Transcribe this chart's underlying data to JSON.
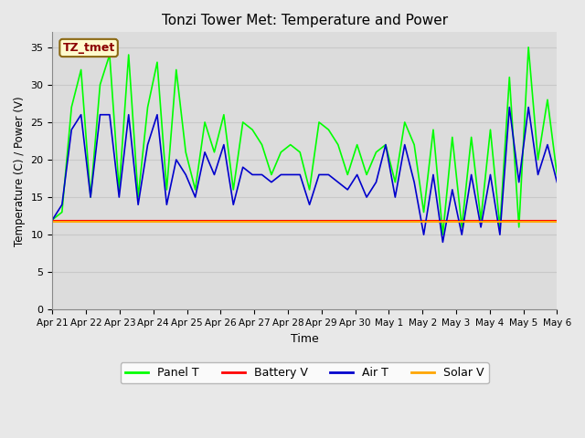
{
  "title": "Tonzi Tower Met: Temperature and Power",
  "xlabel": "Time",
  "ylabel": "Temperature (C) / Power (V)",
  "ylim": [
    0,
    37
  ],
  "yticks": [
    0,
    5,
    10,
    15,
    20,
    25,
    30,
    35
  ],
  "fig_bg_color": "#e8e8e8",
  "plot_bg_color": "#dcdcdc",
  "annotation_text": "TZ_tmet",
  "annotation_bg": "#fffacd",
  "annotation_border": "#8B6914",
  "annotation_text_color": "#8B0000",
  "line_colors": {
    "panel_t": "#00ff00",
    "battery_v": "#ff0000",
    "air_t": "#0000cc",
    "solar_v": "#ffa500"
  },
  "legend_labels": [
    "Panel T",
    "Battery V",
    "Air T",
    "Solar V"
  ],
  "xtick_labels": [
    "Apr 21",
    "Apr 22",
    "Apr 23",
    "Apr 24",
    "Apr 25",
    "Apr 26",
    "Apr 27",
    "Apr 28",
    "Apr 29",
    "Apr 30",
    "May 1",
    "May 2",
    "May 3",
    "May 4",
    "May 5",
    "May 6"
  ],
  "grid_color": "#c8c8c8",
  "panel_t_data": [
    12,
    13,
    27,
    32,
    15,
    30,
    34,
    16,
    34,
    15,
    27,
    33,
    16,
    32,
    21,
    16,
    25,
    21,
    26,
    16,
    25,
    24,
    22,
    18,
    21,
    22,
    21,
    16,
    25,
    24,
    22,
    18,
    22,
    18,
    21,
    22,
    17,
    25,
    22,
    13,
    24,
    10,
    23,
    11,
    23,
    12,
    24,
    11,
    31,
    11,
    35,
    20,
    28,
    18
  ],
  "air_t_data": [
    12,
    14,
    24,
    26,
    15,
    26,
    26,
    15,
    26,
    14,
    22,
    26,
    14,
    20,
    18,
    15,
    21,
    18,
    22,
    14,
    19,
    18,
    18,
    17,
    18,
    18,
    18,
    14,
    18,
    18,
    17,
    16,
    18,
    15,
    17,
    22,
    15,
    22,
    17,
    10,
    18,
    9,
    16,
    10,
    18,
    11,
    18,
    10,
    27,
    17,
    27,
    18,
    22,
    17
  ],
  "battery_v_data": [
    11.9,
    11.9,
    11.9,
    11.9,
    11.9,
    11.9,
    11.9,
    11.9,
    11.9,
    11.9,
    11.9,
    11.9,
    11.9,
    11.9,
    11.9,
    11.9,
    11.9,
    11.9,
    11.9,
    11.9,
    11.9,
    11.9,
    11.9,
    11.9,
    11.9,
    11.9,
    11.9,
    11.9,
    11.9,
    11.9,
    11.9,
    11.9,
    11.9,
    11.9,
    11.9,
    11.9,
    11.9,
    11.9,
    11.9,
    11.9,
    11.9,
    11.9,
    11.9,
    11.9,
    11.9,
    11.9,
    11.9,
    11.9,
    11.9,
    11.9,
    11.9,
    11.9,
    11.9,
    11.9
  ],
  "solar_v_data": [
    11.7,
    11.7,
    11.7,
    11.7,
    11.7,
    11.7,
    11.7,
    11.7,
    11.7,
    11.7,
    11.7,
    11.7,
    11.7,
    11.7,
    11.7,
    11.7,
    11.7,
    11.7,
    11.7,
    11.7,
    11.7,
    11.7,
    11.7,
    11.7,
    11.7,
    11.7,
    11.7,
    11.7,
    11.7,
    11.7,
    11.7,
    11.7,
    11.7,
    11.7,
    11.7,
    11.7,
    11.7,
    11.7,
    11.7,
    11.7,
    11.7,
    11.7,
    11.7,
    11.7,
    11.7,
    11.7,
    11.7,
    11.7,
    11.7,
    11.7,
    11.7,
    11.7,
    11.7,
    11.7
  ]
}
